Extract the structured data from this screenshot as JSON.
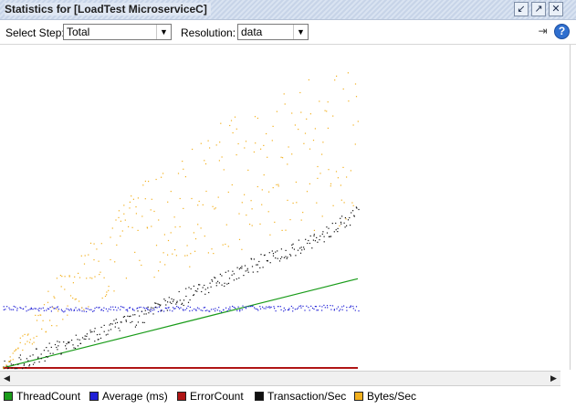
{
  "window": {
    "title": "Statistics for [LoadTest MicroserviceC]"
  },
  "toolbar": {
    "select_step_label": "Select Step:",
    "select_step_value": "Total",
    "resolution_label": "Resolution:",
    "resolution_value": "data"
  },
  "icons": {
    "pin": "pin-icon",
    "restore": "restore-icon",
    "close": "close-icon",
    "exit": "exit-icon",
    "help": "help-icon"
  },
  "legend": [
    {
      "label": "ThreadCount",
      "color": "#1a9c1a"
    },
    {
      "label": "Average (ms)",
      "color": "#1f1fd6"
    },
    {
      "label": "ErrorCount",
      "color": "#b01515"
    },
    {
      "label": "Transaction/Sec",
      "color": "#111111"
    },
    {
      "label": "Bytes/Sec",
      "color": "#f2b01e"
    }
  ],
  "chart_data": {
    "type": "scatter",
    "x": [
      0,
      10,
      20,
      30,
      40,
      50,
      60,
      70,
      80,
      90,
      100
    ],
    "series": [
      {
        "name": "ThreadCount",
        "color": "#1a9c1a",
        "values": [
          0,
          10,
          20,
          30,
          40,
          50,
          60,
          70,
          80,
          90,
          100
        ]
      },
      {
        "name": "Average (ms)",
        "color": "#1f1fd6",
        "values": [
          68,
          67,
          66,
          67,
          66,
          67,
          66,
          68,
          67,
          68,
          67
        ]
      },
      {
        "name": "ErrorCount",
        "color": "#b01515",
        "values": [
          0,
          0,
          0,
          0,
          0,
          0,
          0,
          0,
          0,
          0,
          0
        ]
      },
      {
        "name": "Transaction/Sec",
        "color": "#111111",
        "values": [
          0,
          15,
          30,
          45,
          60,
          78,
          95,
          115,
          130,
          150,
          175
        ]
      },
      {
        "name": "Bytes/Sec",
        "color": "#f2b01e",
        "values": [
          0,
          70,
          135,
          170,
          220,
          245,
          275,
          300,
          315,
          335,
          345
        ]
      }
    ],
    "ylim": [
      0,
      350
    ]
  }
}
